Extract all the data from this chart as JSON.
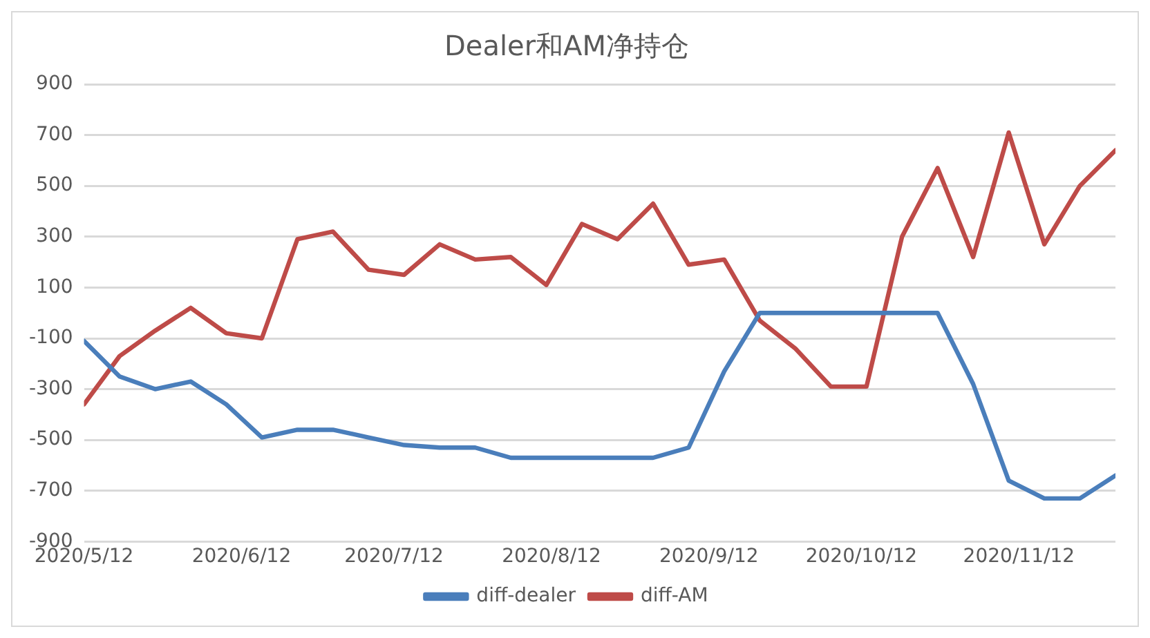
{
  "chart_data": {
    "type": "line",
    "title": "Dealer和AM净持仓",
    "x": [
      "2020-05-12",
      "2020-05-19",
      "2020-05-26",
      "2020-06-02",
      "2020-06-09",
      "2020-06-16",
      "2020-06-23",
      "2020-06-30",
      "2020-07-07",
      "2020-07-14",
      "2020-07-21",
      "2020-07-28",
      "2020-08-04",
      "2020-08-11",
      "2020-08-18",
      "2020-08-25",
      "2020-09-01",
      "2020-09-08",
      "2020-09-15",
      "2020-09-22",
      "2020-09-29",
      "2020-10-06",
      "2020-10-13",
      "2020-10-20",
      "2020-10-27",
      "2020-11-03",
      "2020-11-10",
      "2020-11-17",
      "2020-11-24",
      "2020-12-01"
    ],
    "series": [
      {
        "name": "diff-dealer",
        "color": "#4a7ebb",
        "values": [
          -110,
          -250,
          -300,
          -270,
          -360,
          -490,
          -460,
          -460,
          -490,
          -520,
          -530,
          -530,
          -570,
          -570,
          -570,
          -570,
          -570,
          -530,
          -230,
          0,
          0,
          0,
          0,
          0,
          0,
          -280,
          -660,
          -730,
          -730,
          -640
        ]
      },
      {
        "name": "diff-AM",
        "color": "#be4b48",
        "values": [
          -360,
          -170,
          -70,
          20,
          -80,
          -100,
          290,
          320,
          170,
          150,
          270,
          210,
          220,
          110,
          350,
          290,
          430,
          190,
          210,
          -30,
          -140,
          -290,
          -290,
          300,
          570,
          220,
          710,
          270,
          500,
          640
        ]
      }
    ],
    "xlim": [
      "2020-05-12",
      "2020-12-01"
    ],
    "xticks": [
      {
        "value": "2020-05-12",
        "label": "2020/5/12"
      },
      {
        "value": "2020-06-12",
        "label": "2020/6/12"
      },
      {
        "value": "2020-07-12",
        "label": "2020/7/12"
      },
      {
        "value": "2020-08-12",
        "label": "2020/8/12"
      },
      {
        "value": "2020-09-12",
        "label": "2020/9/12"
      },
      {
        "value": "2020-10-12",
        "label": "2020/10/12"
      },
      {
        "value": "2020-11-12",
        "label": "2020/11/12"
      }
    ],
    "ylim": [
      -900,
      900
    ],
    "yticks": [
      -900,
      -700,
      -500,
      -300,
      -100,
      100,
      300,
      500,
      700,
      900
    ],
    "grid": "y",
    "legend": "bottom",
    "marker": "none",
    "line_style": "solid"
  }
}
